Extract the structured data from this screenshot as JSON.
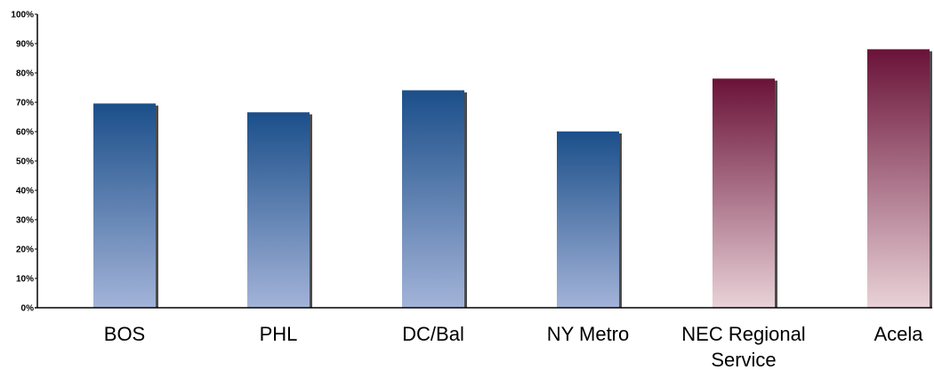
{
  "chart_data": {
    "type": "bar",
    "categories": [
      "BOS",
      "PHL",
      "DC/Bal",
      "NY Metro",
      "NEC Regional Service",
      "Acela"
    ],
    "category_label_lines": [
      [
        "BOS"
      ],
      [
        "PHL"
      ],
      [
        "DC/Bal"
      ],
      [
        "NY Metro"
      ],
      [
        "NEC Regional",
        "Service"
      ],
      [
        "Acela"
      ]
    ],
    "values": [
      69.5,
      66.5,
      74,
      60,
      78,
      88
    ],
    "value_unit": "%",
    "ylim": [
      0,
      100
    ],
    "yticks": [
      0,
      10,
      20,
      30,
      40,
      50,
      60,
      70,
      80,
      90,
      100
    ],
    "ytick_labels": [
      "0%",
      "10%",
      "20%",
      "30%",
      "40%",
      "50%",
      "60%",
      "70%",
      "80%",
      "90%",
      "100%"
    ],
    "title": "",
    "xlabel": "",
    "ylabel": "",
    "grid": false,
    "legend": "none",
    "colors": {
      "blue_top": "#1b4f8a",
      "blue_bottom": "#a3b3d8",
      "maroon_top": "#6a1238",
      "maroon_bottom": "#e9d2d8",
      "axis": "#000000"
    },
    "bar_color_groups": [
      "blue",
      "blue",
      "blue",
      "blue",
      "maroon",
      "maroon"
    ]
  }
}
